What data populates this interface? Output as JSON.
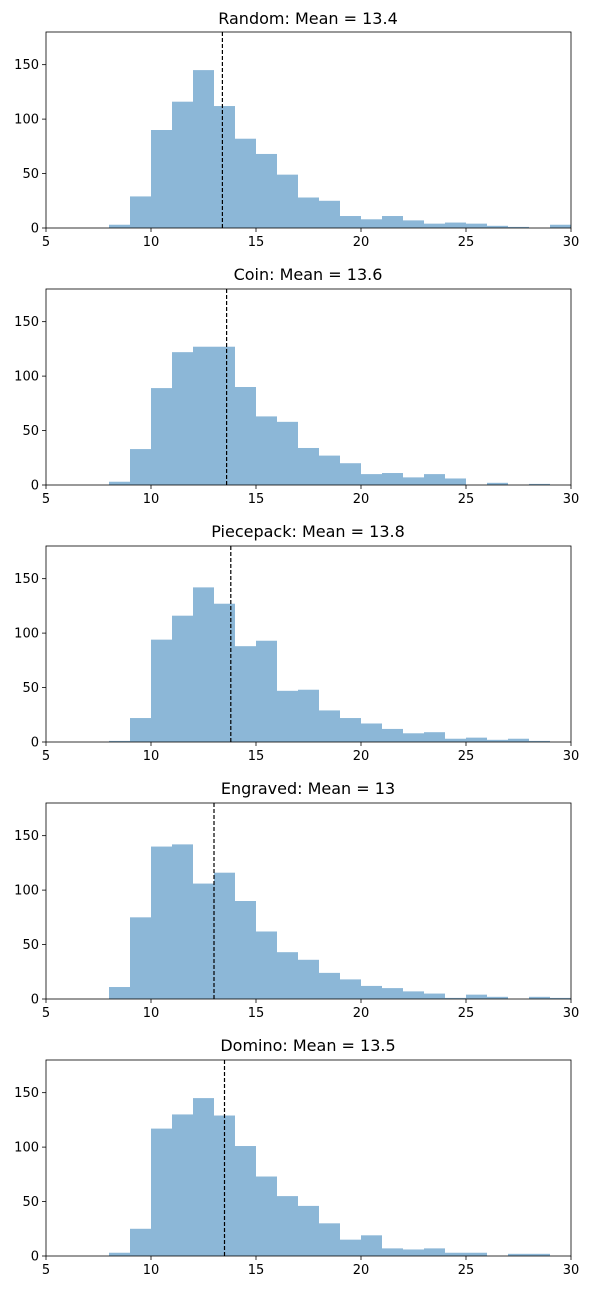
{
  "chart_data": [
    {
      "type": "bar",
      "title": "Random: Mean = 13.4",
      "mean": 13.4,
      "xlim": [
        5,
        30
      ],
      "ylim": [
        0,
        180
      ],
      "xticks": [
        5,
        10,
        15,
        20,
        25,
        30
      ],
      "yticks": [
        0,
        50,
        100,
        150
      ],
      "bin_width": 1,
      "bins": [
        {
          "x0": 8,
          "value": 3
        },
        {
          "x0": 9,
          "value": 29
        },
        {
          "x0": 10,
          "value": 90
        },
        {
          "x0": 11,
          "value": 116
        },
        {
          "x0": 12,
          "value": 145
        },
        {
          "x0": 13,
          "value": 112
        },
        {
          "x0": 14,
          "value": 82
        },
        {
          "x0": 15,
          "value": 68
        },
        {
          "x0": 16,
          "value": 49
        },
        {
          "x0": 17,
          "value": 28
        },
        {
          "x0": 18,
          "value": 25
        },
        {
          "x0": 19,
          "value": 11
        },
        {
          "x0": 20,
          "value": 8
        },
        {
          "x0": 21,
          "value": 11
        },
        {
          "x0": 22,
          "value": 7
        },
        {
          "x0": 23,
          "value": 4
        },
        {
          "x0": 24,
          "value": 5
        },
        {
          "x0": 25,
          "value": 4
        },
        {
          "x0": 26,
          "value": 2
        },
        {
          "x0": 27,
          "value": 1
        },
        {
          "x0": 28,
          "value": 0
        },
        {
          "x0": 29,
          "value": 3
        }
      ]
    },
    {
      "type": "bar",
      "title": "Coin: Mean = 13.6",
      "mean": 13.6,
      "xlim": [
        5,
        30
      ],
      "ylim": [
        0,
        180
      ],
      "xticks": [
        5,
        10,
        15,
        20,
        25,
        30
      ],
      "yticks": [
        0,
        50,
        100,
        150
      ],
      "bin_width": 1,
      "bins": [
        {
          "x0": 8,
          "value": 3
        },
        {
          "x0": 9,
          "value": 33
        },
        {
          "x0": 10,
          "value": 89
        },
        {
          "x0": 11,
          "value": 122
        },
        {
          "x0": 12,
          "value": 127
        },
        {
          "x0": 13,
          "value": 127
        },
        {
          "x0": 14,
          "value": 90
        },
        {
          "x0": 15,
          "value": 63
        },
        {
          "x0": 16,
          "value": 58
        },
        {
          "x0": 17,
          "value": 34
        },
        {
          "x0": 18,
          "value": 27
        },
        {
          "x0": 19,
          "value": 20
        },
        {
          "x0": 20,
          "value": 10
        },
        {
          "x0": 21,
          "value": 11
        },
        {
          "x0": 22,
          "value": 7
        },
        {
          "x0": 23,
          "value": 10
        },
        {
          "x0": 24,
          "value": 6
        },
        {
          "x0": 25,
          "value": 0
        },
        {
          "x0": 26,
          "value": 2
        },
        {
          "x0": 27,
          "value": 0
        },
        {
          "x0": 28,
          "value": 1
        }
      ]
    },
    {
      "type": "bar",
      "title": "Piecepack: Mean = 13.8",
      "mean": 13.8,
      "xlim": [
        5,
        30
      ],
      "ylim": [
        0,
        180
      ],
      "xticks": [
        5,
        10,
        15,
        20,
        25,
        30
      ],
      "yticks": [
        0,
        50,
        100,
        150
      ],
      "bin_width": 1,
      "bins": [
        {
          "x0": 8,
          "value": 1
        },
        {
          "x0": 9,
          "value": 22
        },
        {
          "x0": 10,
          "value": 94
        },
        {
          "x0": 11,
          "value": 116
        },
        {
          "x0": 12,
          "value": 142
        },
        {
          "x0": 13,
          "value": 127
        },
        {
          "x0": 14,
          "value": 88
        },
        {
          "x0": 15,
          "value": 93
        },
        {
          "x0": 16,
          "value": 47
        },
        {
          "x0": 17,
          "value": 48
        },
        {
          "x0": 18,
          "value": 29
        },
        {
          "x0": 19,
          "value": 22
        },
        {
          "x0": 20,
          "value": 17
        },
        {
          "x0": 21,
          "value": 12
        },
        {
          "x0": 22,
          "value": 8
        },
        {
          "x0": 23,
          "value": 9
        },
        {
          "x0": 24,
          "value": 3
        },
        {
          "x0": 25,
          "value": 4
        },
        {
          "x0": 26,
          "value": 2
        },
        {
          "x0": 27,
          "value": 3
        },
        {
          "x0": 28,
          "value": 1
        }
      ]
    },
    {
      "type": "bar",
      "title": "Engraved: Mean = 13",
      "mean": 13,
      "xlim": [
        5,
        30
      ],
      "ylim": [
        0,
        180
      ],
      "xticks": [
        5,
        10,
        15,
        20,
        25,
        30
      ],
      "yticks": [
        0,
        50,
        100,
        150
      ],
      "bin_width": 1,
      "bins": [
        {
          "x0": 8,
          "value": 11
        },
        {
          "x0": 9,
          "value": 75
        },
        {
          "x0": 10,
          "value": 140
        },
        {
          "x0": 11,
          "value": 142
        },
        {
          "x0": 12,
          "value": 106
        },
        {
          "x0": 13,
          "value": 116
        },
        {
          "x0": 14,
          "value": 90
        },
        {
          "x0": 15,
          "value": 62
        },
        {
          "x0": 16,
          "value": 43
        },
        {
          "x0": 17,
          "value": 36
        },
        {
          "x0": 18,
          "value": 24
        },
        {
          "x0": 19,
          "value": 18
        },
        {
          "x0": 20,
          "value": 12
        },
        {
          "x0": 21,
          "value": 10
        },
        {
          "x0": 22,
          "value": 7
        },
        {
          "x0": 23,
          "value": 5
        },
        {
          "x0": 24,
          "value": 1
        },
        {
          "x0": 25,
          "value": 4
        },
        {
          "x0": 26,
          "value": 2
        },
        {
          "x0": 27,
          "value": 0
        },
        {
          "x0": 28,
          "value": 2
        },
        {
          "x0": 29,
          "value": 1
        }
      ]
    },
    {
      "type": "bar",
      "title": "Domino: Mean = 13.5",
      "mean": 13.5,
      "xlim": [
        5,
        30
      ],
      "ylim": [
        0,
        180
      ],
      "xticks": [
        5,
        10,
        15,
        20,
        25,
        30
      ],
      "yticks": [
        0,
        50,
        100,
        150
      ],
      "bin_width": 1,
      "bins": [
        {
          "x0": 8,
          "value": 3
        },
        {
          "x0": 9,
          "value": 25
        },
        {
          "x0": 10,
          "value": 117
        },
        {
          "x0": 11,
          "value": 130
        },
        {
          "x0": 12,
          "value": 145
        },
        {
          "x0": 13,
          "value": 129
        },
        {
          "x0": 14,
          "value": 101
        },
        {
          "x0": 15,
          "value": 73
        },
        {
          "x0": 16,
          "value": 55
        },
        {
          "x0": 17,
          "value": 46
        },
        {
          "x0": 18,
          "value": 30
        },
        {
          "x0": 19,
          "value": 15
        },
        {
          "x0": 20,
          "value": 19
        },
        {
          "x0": 21,
          "value": 7
        },
        {
          "x0": 22,
          "value": 6
        },
        {
          "x0": 23,
          "value": 7
        },
        {
          "x0": 24,
          "value": 3
        },
        {
          "x0": 25,
          "value": 3
        },
        {
          "x0": 26,
          "value": 0
        },
        {
          "x0": 27,
          "value": 2
        },
        {
          "x0": 28,
          "value": 2
        }
      ]
    }
  ],
  "style": {
    "bar_color": "#8cb7d7",
    "mean_line_color": "#000000",
    "axis_color": "#000000",
    "background": "#ffffff"
  }
}
